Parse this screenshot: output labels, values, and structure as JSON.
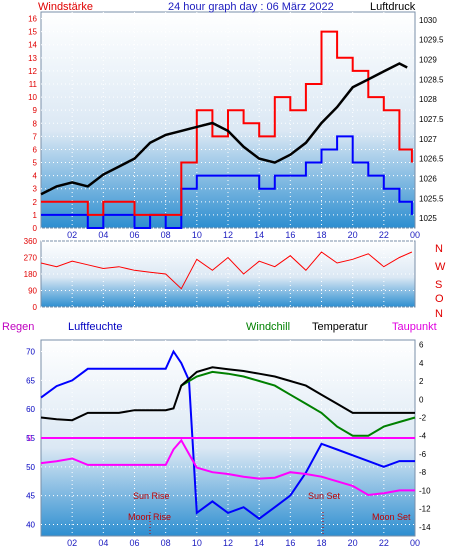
{
  "page": {
    "title": "24 hour graph day : 06 März 2022"
  },
  "chart_data": [
    {
      "type": "line",
      "name": "wind-pressure-panel",
      "left_axis_label": "Windstärke",
      "right_axis_label": "Luftdruck",
      "x_ticks": [
        "02",
        "04",
        "06",
        "08",
        "10",
        "12",
        "14",
        "16",
        "18",
        "20",
        "22",
        "00"
      ],
      "x_range_hours": [
        0,
        24
      ],
      "y_left_range": [
        0,
        16.5
      ],
      "y_left_ticks": [
        "0",
        "1",
        "2",
        "3",
        "4",
        "5",
        "6",
        "7",
        "8",
        "9",
        "10",
        "11",
        "12",
        "13",
        "14",
        "15",
        "16"
      ],
      "y_right_range": [
        1024.75,
        1030.2
      ],
      "y_right_ticks": [
        "1025",
        "1025.5",
        "1026",
        "1026.5",
        "1027",
        "1027.5",
        "1028",
        "1028.5",
        "1029",
        "1029.5",
        "1030"
      ],
      "colors": {
        "gust": "#ff0000",
        "wind": "#0000ff",
        "pressure": "#000000"
      },
      "series": [
        {
          "axis": "right",
          "color": "#000000",
          "x": [
            0,
            1,
            2,
            3,
            4,
            5,
            6,
            7,
            8,
            9,
            10,
            11,
            12,
            13,
            14,
            15,
            16,
            17,
            18,
            19,
            20,
            21,
            22,
            23,
            23.5
          ],
          "y": [
            1025.6,
            1025.8,
            1025.9,
            1025.8,
            1026.1,
            1026.3,
            1026.5,
            1026.9,
            1027.1,
            1027.2,
            1027.3,
            1027.4,
            1027.2,
            1026.8,
            1026.5,
            1026.4,
            1026.6,
            1026.9,
            1027.4,
            1027.8,
            1028.3,
            1028.5,
            1028.7,
            1028.9,
            1028.8
          ]
        },
        {
          "axis": "left",
          "color": "#0000ff",
          "x": [
            0,
            1,
            2,
            3,
            4,
            5,
            6,
            7,
            8,
            9,
            10,
            11,
            12,
            13,
            14,
            15,
            16,
            17,
            18,
            19,
            20,
            21,
            22,
            23,
            23.8
          ],
          "y": [
            1,
            1,
            1,
            0,
            1,
            1,
            0,
            1,
            0,
            3,
            4,
            4,
            4,
            4,
            3,
            4,
            4,
            5,
            6,
            7,
            5,
            4,
            3,
            2,
            1
          ]
        },
        {
          "axis": "left",
          "color": "#ff0000",
          "x": [
            0,
            1,
            2,
            3,
            4,
            5,
            6,
            7,
            8,
            9,
            10,
            11,
            12,
            13,
            14,
            15,
            16,
            17,
            18,
            19,
            20,
            21,
            22,
            23,
            23.8
          ],
          "y": [
            2,
            2,
            2,
            1,
            2,
            2,
            1,
            1,
            1,
            5,
            9,
            7,
            9,
            8,
            7,
            10,
            9,
            11,
            15,
            13,
            12,
            10,
            9,
            6,
            5
          ]
        }
      ]
    },
    {
      "type": "scatter",
      "name": "wind-direction-panel",
      "x_range_hours": [
        0,
        24
      ],
      "y_range": [
        0,
        360
      ],
      "y_ticks": [
        "360",
        "270",
        "180",
        "90",
        "0"
      ],
      "right_letters": [
        "N",
        "W",
        "S",
        "O",
        "N"
      ],
      "color": "#ff0000",
      "series": [
        {
          "color": "#ff0000",
          "x": [
            0,
            1,
            2,
            3,
            4,
            5,
            6,
            7,
            8,
            9,
            10,
            11,
            12,
            13,
            14,
            15,
            16,
            17,
            18,
            19,
            20,
            21,
            22,
            23,
            23.8
          ],
          "y": [
            240,
            220,
            250,
            230,
            210,
            220,
            200,
            190,
            180,
            100,
            260,
            200,
            270,
            180,
            250,
            220,
            280,
            200,
            300,
            240,
            260,
            290,
            220,
            270,
            300
          ]
        }
      ]
    },
    {
      "type": "line",
      "name": "humidity-temperature-panel",
      "left_axis_label": "Regen",
      "left_axis_label_2": "Luftfeuchte",
      "windchill_label": "Windchill",
      "temperature_label": "Temperatur",
      "dewpoint_label": "Taupunkt",
      "x_ticks": [
        "02",
        "04",
        "06",
        "08",
        "10",
        "12",
        "14",
        "16",
        "18",
        "20",
        "22",
        "00"
      ],
      "x_range_hours": [
        0,
        24
      ],
      "y_left_range": [
        38,
        72
      ],
      "y_left_ticks": [
        "70",
        "65",
        "60",
        "55",
        "50",
        "45",
        "40"
      ],
      "rain_tick": "0",
      "y_right_range": [
        -15,
        6.5
      ],
      "y_right_ticks": [
        "6",
        "4",
        "2",
        "0",
        "-2",
        "-4",
        "-6",
        "-8",
        "-10",
        "-12",
        "-14"
      ],
      "annotations": {
        "sun_rise": "Sun Rise",
        "sun_set": "Sun Set",
        "moon_rise": "Moon Rise",
        "moon_set": "Moon Set"
      },
      "colors": {
        "humidity": "#0000ff",
        "windchill": "#008000",
        "temperature": "#000000",
        "dewpoint": "#ff00ff",
        "rain": "#ff00ff"
      },
      "series": [
        {
          "axis": "left",
          "color": "#0000ff",
          "x": [
            0,
            1,
            2,
            3,
            4,
            5,
            6,
            7,
            8,
            8.5,
            9,
            9.5,
            10,
            11,
            12,
            13,
            14,
            15,
            16,
            17,
            18,
            19,
            20,
            21,
            22,
            23,
            24
          ],
          "y": [
            62,
            64,
            65,
            67,
            67,
            67,
            67,
            67,
            67,
            70,
            68,
            65,
            42,
            44,
            42,
            43,
            41,
            43,
            45,
            49,
            54,
            53,
            52,
            51,
            50,
            51,
            51
          ]
        },
        {
          "axis": "right",
          "color": "#008000",
          "x": [
            9,
            10,
            11,
            12,
            13,
            14,
            15,
            16,
            17,
            18,
            19,
            20,
            21,
            22,
            23,
            24
          ],
          "y": [
            1.5,
            2.5,
            3.0,
            2.8,
            2.5,
            2.0,
            1.5,
            0.5,
            -0.5,
            -1.5,
            -3.0,
            -4.0,
            -4.0,
            -3.0,
            -2.5,
            -2.0
          ]
        },
        {
          "axis": "right",
          "color": "#000000",
          "x": [
            0,
            1,
            2,
            3,
            4,
            5,
            6,
            7,
            8,
            8.5,
            9,
            10,
            11,
            12,
            13,
            14,
            15,
            16,
            17,
            18,
            19,
            20,
            21,
            22,
            23,
            24
          ],
          "y": [
            -2.0,
            -2.2,
            -2.3,
            -1.5,
            -1.5,
            -1.5,
            -1.2,
            -1.2,
            -1.2,
            -1.0,
            1.5,
            3.0,
            3.5,
            3.3,
            3.1,
            2.8,
            2.5,
            2.0,
            1.5,
            0.5,
            -0.5,
            -1.5,
            -1.5,
            -1.5,
            -1.5,
            -1.5
          ]
        },
        {
          "axis": "right",
          "color": "#ff00ff",
          "x": [
            0,
            1,
            2,
            3,
            4,
            5,
            6,
            7,
            8,
            8.5,
            9,
            9.5,
            10,
            11,
            12,
            13,
            14,
            15,
            16,
            17,
            18,
            19,
            20,
            21,
            22,
            23,
            24
          ],
          "y": [
            -7.0,
            -6.8,
            -6.5,
            -7.2,
            -7.2,
            -7.2,
            -7.2,
            -7.2,
            -7.2,
            -5.5,
            -4.5,
            -6.0,
            -7.5,
            -8.0,
            -8.2,
            -8.5,
            -8.7,
            -8.6,
            -8.0,
            -8.2,
            -8.5,
            -9.0,
            -9.5,
            -10.5,
            -10.3,
            -10.0,
            -10.0
          ]
        },
        {
          "axis": "left",
          "color": "#ff00ff",
          "x": [
            0,
            24
          ],
          "y": [
            55,
            55
          ]
        }
      ]
    }
  ]
}
